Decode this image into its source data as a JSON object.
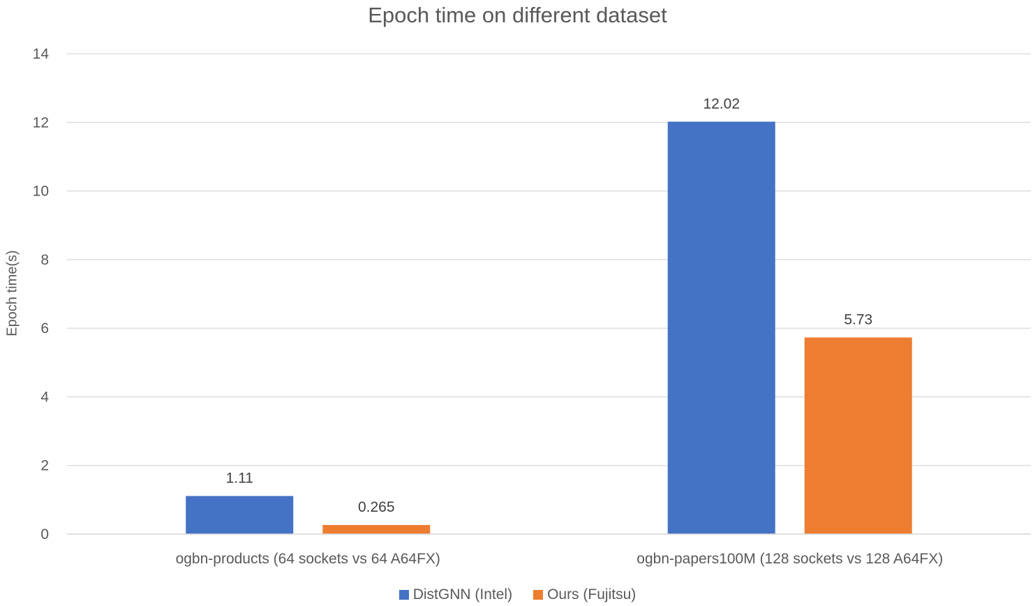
{
  "chart_data": {
    "type": "bar",
    "title": "Epoch time on different dataset",
    "xlabel": "",
    "ylabel": "Epoch time(s)",
    "ylim": [
      0,
      14
    ],
    "yticks": [
      0,
      2,
      4,
      6,
      8,
      10,
      12,
      14
    ],
    "grid": true,
    "legend_position": "bottom",
    "categories": [
      "ogbn-products (64 sockets vs 64 A64FX)",
      "ogbn-papers100M (128 sockets vs 128 A64FX)"
    ],
    "series": [
      {
        "name": "DistGNN (Intel)",
        "color": "#4472c4",
        "values": [
          1.11,
          12.02
        ],
        "labels": [
          "1.11",
          "12.02"
        ]
      },
      {
        "name": "Ours (Fujitsu)",
        "color": "#ed7d31",
        "values": [
          0.265,
          5.73
        ],
        "labels": [
          "0.265",
          "5.73"
        ]
      }
    ]
  }
}
